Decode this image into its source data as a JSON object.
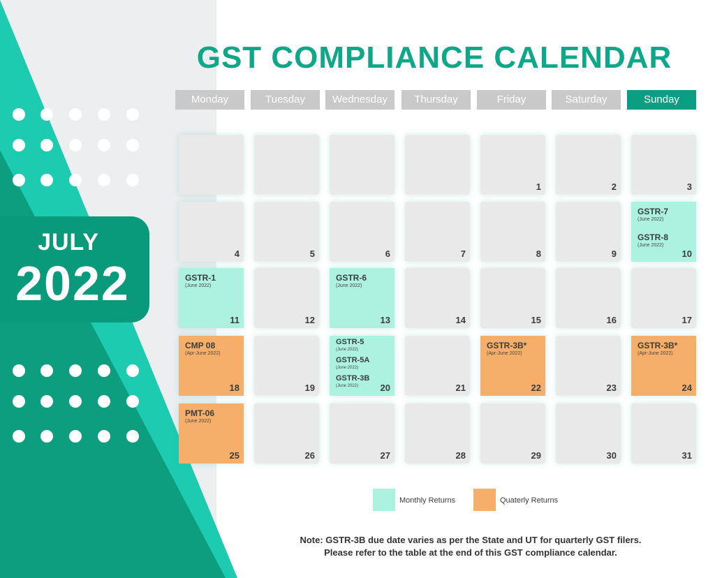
{
  "title": "GST COMPLIANCE CALENDAR",
  "month": "JULY",
  "year": "2022",
  "days": [
    "Monday",
    "Tuesday",
    "Wednesday",
    "Thursday",
    "Friday",
    "Saturday",
    "Sunday"
  ],
  "cells": [
    {
      "day": ""
    },
    {
      "day": ""
    },
    {
      "day": ""
    },
    {
      "day": ""
    },
    {
      "day": "1"
    },
    {
      "day": "2"
    },
    {
      "day": "3"
    },
    {
      "day": "4"
    },
    {
      "day": "5"
    },
    {
      "day": "6"
    },
    {
      "day": "7"
    },
    {
      "day": "8"
    },
    {
      "day": "9"
    },
    {
      "day": "10",
      "kind": "monthly",
      "events": [
        {
          "form": "GSTR-7",
          "period": "(June 2022)"
        },
        {
          "form": "GSTR-8",
          "period": "(June 2022)"
        }
      ]
    },
    {
      "day": "11",
      "kind": "monthly",
      "events": [
        {
          "form": "GSTR-1",
          "period": "(June 2022)"
        }
      ]
    },
    {
      "day": "12"
    },
    {
      "day": "13",
      "kind": "monthly",
      "events": [
        {
          "form": "GSTR-6",
          "period": "(June 2022)"
        }
      ]
    },
    {
      "day": "14"
    },
    {
      "day": "15"
    },
    {
      "day": "16"
    },
    {
      "day": "17"
    },
    {
      "day": "18",
      "kind": "quarterly",
      "events": [
        {
          "form": "CMP 08",
          "period": "(Apr-June 2022)"
        }
      ]
    },
    {
      "day": "19"
    },
    {
      "day": "20",
      "kind": "monthly",
      "events": [
        {
          "form": "GSTR-5",
          "period": "(June 2022)"
        },
        {
          "form": "GSTR-5A",
          "period": "(June 2022)"
        },
        {
          "form": "GSTR-3B",
          "period": "(June 2022)"
        }
      ]
    },
    {
      "day": "21"
    },
    {
      "day": "22",
      "kind": "quarterly",
      "events": [
        {
          "form": "GSTR-3B*",
          "period": "(Apr-June 2022)"
        }
      ]
    },
    {
      "day": "23"
    },
    {
      "day": "24",
      "kind": "quarterly",
      "events": [
        {
          "form": "GSTR-3B*",
          "period": "(Apr-June 2022)"
        }
      ]
    },
    {
      "day": "25",
      "kind": "quarterly",
      "events": [
        {
          "form": "PMT-06",
          "period": "(June 2022)"
        }
      ]
    },
    {
      "day": "26"
    },
    {
      "day": "27"
    },
    {
      "day": "28"
    },
    {
      "day": "29"
    },
    {
      "day": "30"
    },
    {
      "day": "31"
    }
  ],
  "legend": {
    "monthly_label": "Monthly Returns",
    "quarterly_label": "Quaterly Returns",
    "monthly_color": "#adf2e0",
    "quarterly_color": "#f6af6a"
  },
  "note": {
    "line1": "Note: GSTR-3B due date varies as per the State and UT for quarterly GST filers.",
    "line2": "Please refer to the table at the end of this GST compliance calendar."
  }
}
